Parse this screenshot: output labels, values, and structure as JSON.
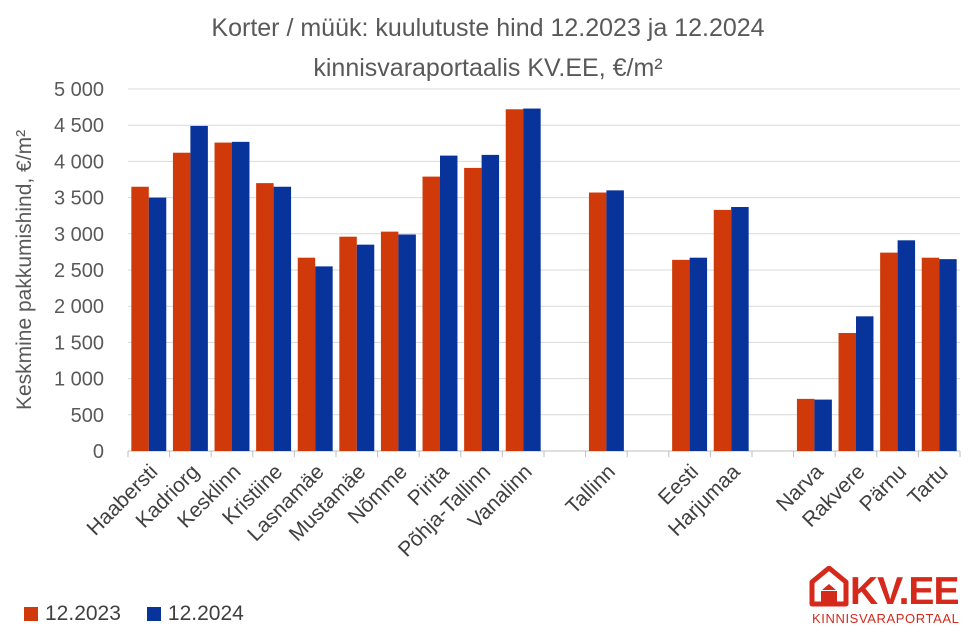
{
  "chart_data": {
    "type": "bar",
    "title": "Korter / müük: kuulutuste hind 12.2023 ja 12.2024",
    "subtitle": "kinnisvaraportaalis KV.EE, €/m²",
    "ylabel": "Keskmine pakkumishind, €/m²",
    "xlabel": "",
    "ylim": [
      0,
      5000
    ],
    "yticks": [
      "0",
      "500",
      "1 000",
      "1 500",
      "2 000",
      "2 500",
      "3 000",
      "3 500",
      "4 000",
      "4 500",
      "5 000"
    ],
    "grid": true,
    "legend_position": "bottom-left",
    "categories": [
      "Haabersti",
      "Kadriorg",
      "Kesklinn",
      "Kristiine",
      "Lasnamäe",
      "Mustamäe",
      "Nõmme",
      "Pirita",
      "Põhja-Tallinn",
      "Vanalinn",
      "",
      "Tallinn",
      "",
      "Eesti",
      "Harjumaa",
      "",
      "Narva",
      "Rakvere",
      "Pärnu",
      "Tartu"
    ],
    "series": [
      {
        "name": "12.2023",
        "color": "#d03a0a",
        "values": [
          3650,
          4120,
          4260,
          3700,
          2670,
          2960,
          3030,
          3790,
          3910,
          4720,
          null,
          3570,
          null,
          2640,
          3330,
          null,
          720,
          1630,
          2740,
          2670
        ]
      },
      {
        "name": "12.2024",
        "color": "#08339a",
        "values": [
          3500,
          4490,
          4270,
          3650,
          2550,
          2850,
          2990,
          4080,
          4090,
          4730,
          null,
          3600,
          null,
          2670,
          3370,
          null,
          710,
          1860,
          2910,
          2650
        ]
      }
    ]
  },
  "logo": {
    "name": "KV.EE",
    "tagline": "KINNISVARAPORTAAL",
    "color": "#d4291b"
  }
}
